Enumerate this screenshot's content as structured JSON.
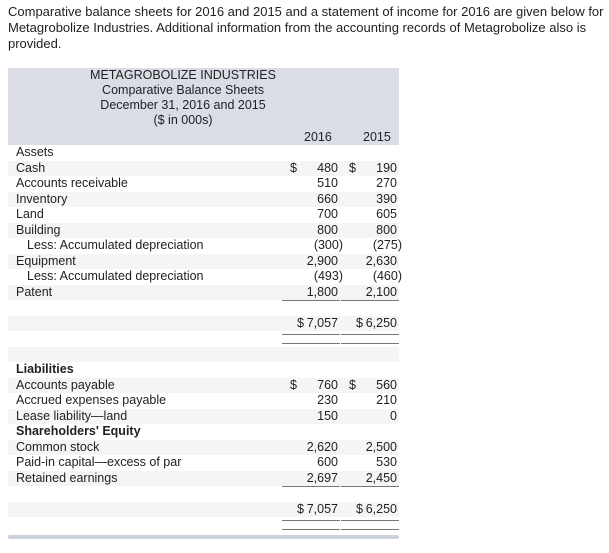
{
  "intro": "Comparative balance sheets for 2016 and 2015 and a statement of income for 2016 are given below for Metagrobolize Industries. Additional information from the accounting records of Metagrobolize also is provided.",
  "header": {
    "company": "METAGROBOLIZE INDUSTRIES",
    "title": "Comparative Balance Sheets",
    "date": "December 31, 2016 and 2015",
    "units": "($ in 000s)",
    "year1": "2016",
    "year2": "2015"
  },
  "rows": [
    {
      "label": "Assets"
    },
    {
      "label": "Cash",
      "v1": "480",
      "v2": "190",
      "d1": "$",
      "d2": "$"
    },
    {
      "label": "Accounts receivable",
      "v1": "510",
      "v2": "270"
    },
    {
      "label": "Inventory",
      "v1": "660",
      "v2": "390"
    },
    {
      "label": "Land",
      "v1": "700",
      "v2": "605"
    },
    {
      "label": "Building",
      "v1": "800",
      "v2": "800"
    },
    {
      "label": "Less: Accumulated depreciation",
      "indent": true,
      "v1": "(300)",
      "v2": "(275)"
    },
    {
      "label": "Equipment",
      "v1": "2,900",
      "v2": "2,630"
    },
    {
      "label": "Less: Accumulated depreciation",
      "indent": true,
      "v1": "(493)",
      "v2": "(460)"
    },
    {
      "label": "Patent",
      "v1": "1,800",
      "v2": "2,100"
    },
    {
      "label": "",
      "rule": "single"
    },
    {
      "label": "",
      "v1": "7,057",
      "v2": "6,250",
      "d1": "$",
      "d2": "$",
      "tight": true
    },
    {
      "label": "",
      "rule": "double"
    },
    {
      "label": ""
    },
    {
      "label": "Liabilities",
      "bold": true
    },
    {
      "label": "Accounts payable",
      "v1": "760",
      "v2": "560",
      "d1": "$",
      "d2": "$"
    },
    {
      "label": "Accrued expenses payable",
      "v1": "230",
      "v2": "210"
    },
    {
      "label": "Lease liability—land",
      "v1": "150",
      "v2": "0"
    },
    {
      "label": "Shareholders' Equity",
      "bold": true
    },
    {
      "label": "Common stock",
      "v1": "2,620",
      "v2": "2,500"
    },
    {
      "label": "Paid-in capital—excess of par",
      "v1": "600",
      "v2": "530"
    },
    {
      "label": "Retained earnings",
      "v1": "2,697",
      "v2": "2,450"
    },
    {
      "label": "",
      "rule": "single"
    },
    {
      "label": "",
      "v1": "7,057",
      "v2": "6,250",
      "d1": "$",
      "d2": "$",
      "tight": true
    },
    {
      "label": "",
      "rule": "double"
    }
  ]
}
